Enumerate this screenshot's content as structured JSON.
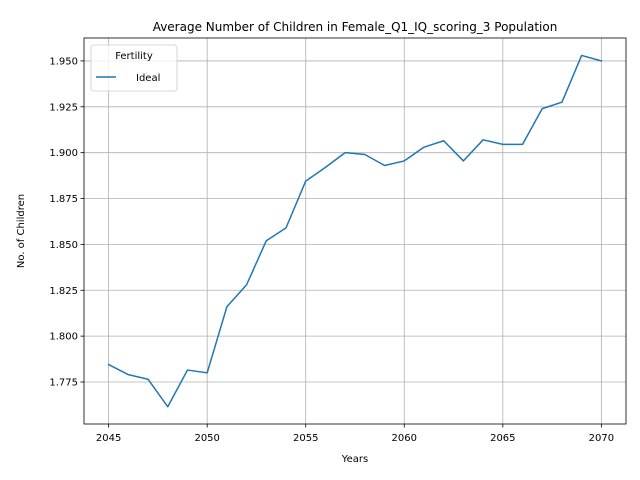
{
  "chart_data": {
    "type": "line",
    "title": "Average Number of Children in Female_Q1_IQ_scoring_3 Population",
    "xlabel": "Years",
    "ylabel": "No. of Children",
    "xlim": [
      2043.75,
      2071.25
    ],
    "ylim": [
      1.7521,
      1.9625
    ],
    "xticks": [
      2045,
      2050,
      2055,
      2060,
      2065,
      2070
    ],
    "yticks": [
      1.775,
      1.8,
      1.825,
      1.85,
      1.875,
      1.9,
      1.925,
      1.95
    ],
    "ytick_labels": [
      "1.775",
      "1.800",
      "1.825",
      "1.850",
      "1.875",
      "1.900",
      "1.925",
      "1.950"
    ],
    "grid": true,
    "legend": {
      "title": "Fertility",
      "placement": "upper-left"
    },
    "x": [
      2045,
      2046,
      2047,
      2048,
      2049,
      2050,
      2051,
      2052,
      2053,
      2054,
      2055,
      2056,
      2057,
      2058,
      2059,
      2060,
      2061,
      2062,
      2063,
      2064,
      2065,
      2066,
      2067,
      2068,
      2069,
      2070
    ],
    "series": [
      {
        "name": "Ideal",
        "color": "#1f77b4",
        "values": [
          1.7845,
          1.779,
          1.7765,
          1.7615,
          1.7815,
          1.78,
          1.816,
          1.828,
          1.852,
          1.859,
          1.8845,
          1.892,
          1.9,
          1.899,
          1.893,
          1.8955,
          1.903,
          1.9065,
          1.8955,
          1.907,
          1.9045,
          1.9045,
          1.924,
          1.9275,
          1.953,
          1.95
        ]
      }
    ]
  }
}
